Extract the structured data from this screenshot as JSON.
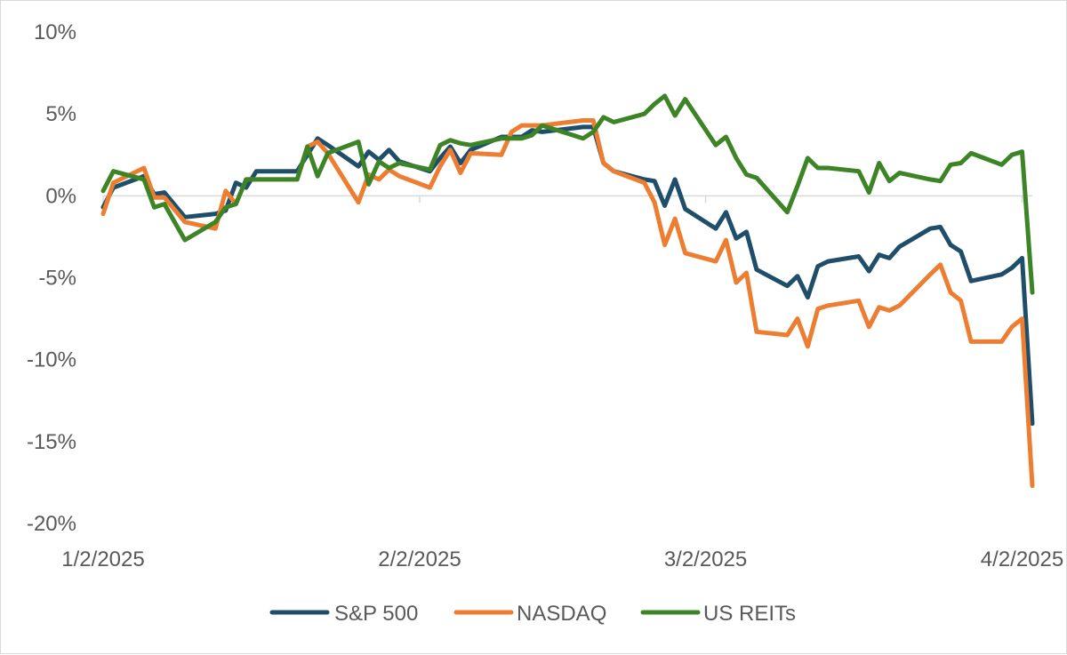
{
  "chart_data": {
    "type": "line",
    "title": "",
    "xlabel": "",
    "ylabel": "",
    "ylim": [
      -20,
      10
    ],
    "yticks": [
      10,
      5,
      0,
      -5,
      -10,
      -15,
      -20
    ],
    "ytick_labels": [
      "10%",
      "5%",
      "0%",
      "-5%",
      "-10%",
      "-15%",
      "-20%"
    ],
    "xlim": [
      "2025-01-02",
      "2025-04-03"
    ],
    "xtick_labels": [
      "1/2/2025",
      "2/2/2025",
      "3/2/2025",
      "4/2/2025"
    ],
    "xticks": [
      "2025-01-02",
      "2025-02-02",
      "2025-03-02",
      "2025-04-02"
    ],
    "grid": false,
    "legend_position": "bottom",
    "series": [
      {
        "name": "S&P 500",
        "color": "#1f4e6b",
        "x": [
          "2025-01-02",
          "2025-01-03",
          "2025-01-06",
          "2025-01-07",
          "2025-01-08",
          "2025-01-10",
          "2025-01-13",
          "2025-01-14",
          "2025-01-15",
          "2025-01-16",
          "2025-01-17",
          "2025-01-21",
          "2025-01-22",
          "2025-01-23",
          "2025-01-24",
          "2025-01-27",
          "2025-01-28",
          "2025-01-29",
          "2025-01-30",
          "2025-01-31",
          "2025-02-03",
          "2025-02-04",
          "2025-02-05",
          "2025-02-06",
          "2025-02-07",
          "2025-02-10",
          "2025-02-11",
          "2025-02-12",
          "2025-02-13",
          "2025-02-14",
          "2025-02-18",
          "2025-02-19",
          "2025-02-20",
          "2025-02-21",
          "2025-02-24",
          "2025-02-25",
          "2025-02-26",
          "2025-02-27",
          "2025-02-28",
          "2025-03-03",
          "2025-03-04",
          "2025-03-05",
          "2025-03-06",
          "2025-03-07",
          "2025-03-10",
          "2025-03-11",
          "2025-03-12",
          "2025-03-13",
          "2025-03-14",
          "2025-03-17",
          "2025-03-18",
          "2025-03-19",
          "2025-03-20",
          "2025-03-21",
          "2025-03-24",
          "2025-03-25",
          "2025-03-26",
          "2025-03-27",
          "2025-03-28",
          "2025-03-31",
          "2025-04-01",
          "2025-04-02",
          "2025-04-03"
        ],
        "values": [
          -0.7,
          0.5,
          1.2,
          0.1,
          0.2,
          -1.3,
          -1.1,
          -0.9,
          0.8,
          0.5,
          1.5,
          1.5,
          2.5,
          3.5,
          3.1,
          1.8,
          2.7,
          2.2,
          2.8,
          2.1,
          1.5,
          2.3,
          3.0,
          2.0,
          2.8,
          3.6,
          3.6,
          3.6,
          4.0,
          3.9,
          4.2,
          4.2,
          2.0,
          1.5,
          1.0,
          0.9,
          -0.6,
          1.0,
          -0.8,
          -2.0,
          -1.0,
          -2.6,
          -2.2,
          -4.5,
          -5.5,
          -4.9,
          -6.2,
          -4.3,
          -4.0,
          -3.7,
          -4.6,
          -3.6,
          -3.8,
          -3.1,
          -2.0,
          -1.9,
          -3.0,
          -3.4,
          -5.2,
          -4.8,
          -4.4,
          -3.8,
          -13.9
        ]
      },
      {
        "name": "NASDAQ",
        "color": "#ed7d31",
        "x": [
          "2025-01-02",
          "2025-01-03",
          "2025-01-06",
          "2025-01-07",
          "2025-01-08",
          "2025-01-10",
          "2025-01-13",
          "2025-01-14",
          "2025-01-15",
          "2025-01-16",
          "2025-01-17",
          "2025-01-21",
          "2025-01-22",
          "2025-01-23",
          "2025-01-24",
          "2025-01-27",
          "2025-01-28",
          "2025-01-29",
          "2025-01-30",
          "2025-01-31",
          "2025-02-03",
          "2025-02-04",
          "2025-02-05",
          "2025-02-06",
          "2025-02-07",
          "2025-02-10",
          "2025-02-11",
          "2025-02-12",
          "2025-02-13",
          "2025-02-14",
          "2025-02-18",
          "2025-02-19",
          "2025-02-20",
          "2025-02-21",
          "2025-02-24",
          "2025-02-25",
          "2025-02-26",
          "2025-02-27",
          "2025-02-28",
          "2025-03-03",
          "2025-03-04",
          "2025-03-05",
          "2025-03-06",
          "2025-03-07",
          "2025-03-10",
          "2025-03-11",
          "2025-03-12",
          "2025-03-13",
          "2025-03-14",
          "2025-03-17",
          "2025-03-18",
          "2025-03-19",
          "2025-03-20",
          "2025-03-21",
          "2025-03-24",
          "2025-03-25",
          "2025-03-26",
          "2025-03-27",
          "2025-03-28",
          "2025-03-31",
          "2025-04-01",
          "2025-04-02",
          "2025-04-03"
        ],
        "values": [
          -1.1,
          0.8,
          1.7,
          -0.1,
          -0.1,
          -1.6,
          -2.0,
          0.3,
          -0.5,
          1.0,
          1.0,
          1.0,
          3.0,
          3.3,
          2.6,
          -0.4,
          1.3,
          1.0,
          1.6,
          1.2,
          0.5,
          1.8,
          2.8,
          1.4,
          2.6,
          2.5,
          3.9,
          4.3,
          4.3,
          4.3,
          4.6,
          4.6,
          2.0,
          1.5,
          0.8,
          -0.4,
          -3.0,
          -1.4,
          -3.5,
          -4.0,
          -2.7,
          -5.3,
          -4.7,
          -8.3,
          -8.5,
          -7.5,
          -9.2,
          -6.9,
          -6.7,
          -6.4,
          -8.0,
          -6.8,
          -7.0,
          -6.7,
          -4.8,
          -4.2,
          -5.9,
          -6.4,
          -8.9,
          -8.9,
          -8.0,
          -7.5,
          -17.7
        ]
      },
      {
        "name": "US REITs",
        "color": "#3c8425",
        "x": [
          "2025-01-02",
          "2025-01-03",
          "2025-01-06",
          "2025-01-07",
          "2025-01-08",
          "2025-01-10",
          "2025-01-13",
          "2025-01-14",
          "2025-01-15",
          "2025-01-16",
          "2025-01-17",
          "2025-01-21",
          "2025-01-22",
          "2025-01-23",
          "2025-01-24",
          "2025-01-27",
          "2025-01-28",
          "2025-01-29",
          "2025-01-30",
          "2025-01-31",
          "2025-02-03",
          "2025-02-04",
          "2025-02-05",
          "2025-02-06",
          "2025-02-07",
          "2025-02-10",
          "2025-02-11",
          "2025-02-12",
          "2025-02-13",
          "2025-02-14",
          "2025-02-18",
          "2025-02-19",
          "2025-02-20",
          "2025-02-21",
          "2025-02-24",
          "2025-02-25",
          "2025-02-26",
          "2025-02-27",
          "2025-02-28",
          "2025-03-03",
          "2025-03-04",
          "2025-03-05",
          "2025-03-06",
          "2025-03-07",
          "2025-03-10",
          "2025-03-11",
          "2025-03-12",
          "2025-03-13",
          "2025-03-14",
          "2025-03-17",
          "2025-03-18",
          "2025-03-19",
          "2025-03-20",
          "2025-03-21",
          "2025-03-24",
          "2025-03-25",
          "2025-03-26",
          "2025-03-27",
          "2025-03-28",
          "2025-03-31",
          "2025-04-01",
          "2025-04-02",
          "2025-04-03"
        ],
        "values": [
          0.3,
          1.5,
          1.0,
          -0.7,
          -0.5,
          -2.7,
          -1.6,
          -0.7,
          -0.5,
          1.0,
          1.0,
          1.0,
          3.0,
          1.2,
          2.6,
          3.3,
          0.7,
          2.1,
          1.7,
          2.0,
          1.6,
          3.1,
          3.4,
          3.2,
          3.1,
          3.5,
          3.5,
          3.5,
          3.7,
          4.3,
          3.5,
          3.9,
          4.8,
          4.5,
          5.0,
          5.6,
          6.1,
          4.9,
          5.9,
          3.1,
          3.6,
          2.3,
          1.3,
          1.1,
          -1.0,
          0.6,
          2.3,
          1.7,
          1.7,
          1.5,
          0.2,
          2.0,
          0.9,
          1.4,
          1.0,
          0.9,
          1.9,
          2.0,
          2.6,
          1.9,
          2.5,
          2.7,
          -5.9
        ]
      }
    ]
  }
}
